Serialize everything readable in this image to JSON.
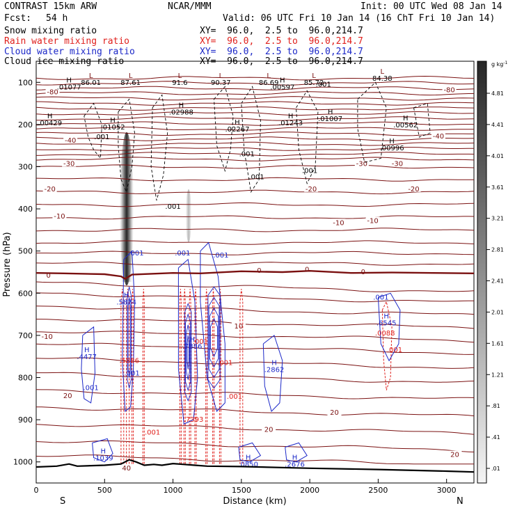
{
  "header": {
    "left_title": "CONTRAST 15km ARW",
    "center_title": "NCAR/MMM",
    "init": "Init: 00 UTC Wed 08 Jan 14",
    "fcst_label": "Fcst:",
    "fcst_value": "54 h",
    "valid": "Valid: 06 UTC Fri 10 Jan 14 (16 ChT Fri 10 Jan 14)"
  },
  "fields": [
    {
      "name": "Snow mixing ratio",
      "xy": "XY=  96.0,  2.5 to  96.0,214.7",
      "color": "#000000"
    },
    {
      "name": "Rain water mixing ratio",
      "xy": "XY=  96.0,  2.5 to  96.0,214.7",
      "color": "#e0201c"
    },
    {
      "name": "Cloud water mixing ratio",
      "xy": "XY=  96.0,  2.5 to  96.0,214.7",
      "color": "#1c28c8"
    },
    {
      "name": "Cloud ice mixing ratio",
      "xy": "XY=  96.0,  2.5 to  96.0,214.7",
      "color": "#000000"
    }
  ],
  "chart_data": {
    "type": "contour cross-section",
    "xlabel": "Distance (km)",
    "ylabel": "Pressure (hPa)",
    "xlim": [
      0,
      3200
    ],
    "ylim": [
      1050,
      50
    ],
    "x_ticks": [
      0,
      500,
      1000,
      1500,
      2000,
      2500,
      3000
    ],
    "y_ticks": [
      100,
      200,
      300,
      400,
      500,
      600,
      700,
      800,
      900,
      1000
    ],
    "x_end_labels": {
      "left": "S",
      "right": "N"
    },
    "colorbar": {
      "unit": "g kg",
      "unit_exp": "-1",
      "ticks": [
        "4.81",
        "4.41",
        "4.01",
        "3.61",
        "3.21",
        "2.81",
        "2.41",
        "2.01",
        "1.61",
        "1.21",
        ".81",
        ".41",
        ".01"
      ],
      "values": [
        4.81,
        4.41,
        4.01,
        3.61,
        3.21,
        2.81,
        2.41,
        2.01,
        1.61,
        1.21,
        0.81,
        0.41,
        0.01
      ]
    },
    "temperature_isotherms": {
      "color": "#7a1010",
      "labels": [
        {
          "text": "-80",
          "x": 120,
          "p": 125
        },
        {
          "text": "-80",
          "x": 3020,
          "p": 120
        },
        {
          "text": "-40",
          "x": 250,
          "p": 240
        },
        {
          "text": "-40",
          "x": 2940,
          "p": 230
        },
        {
          "text": "-30",
          "x": 240,
          "p": 295
        },
        {
          "text": "-30",
          "x": 2380,
          "p": 295
        },
        {
          "text": "-30",
          "x": 2640,
          "p": 295
        },
        {
          "text": "-20",
          "x": 100,
          "p": 355
        },
        {
          "text": "-20",
          "x": 2010,
          "p": 355
        },
        {
          "text": "-20",
          "x": 2760,
          "p": 355
        },
        {
          "text": "-10",
          "x": 170,
          "p": 420
        },
        {
          "text": "-10",
          "x": 2210,
          "p": 435
        },
        {
          "text": "-10",
          "x": 2460,
          "p": 430
        },
        {
          "text": "0",
          "x": 90,
          "p": 560
        },
        {
          "text": "0",
          "x": 1630,
          "p": 548
        },
        {
          "text": "0",
          "x": 1980,
          "p": 546
        },
        {
          "text": "0",
          "x": 2390,
          "p": 552
        },
        {
          "text": "10",
          "x": 1480,
          "p": 680
        },
        {
          "text": "-10",
          "x": 80,
          "p": 705
        },
        {
          "text": "20",
          "x": 230,
          "p": 845
        },
        {
          "text": "20",
          "x": 1700,
          "p": 925
        },
        {
          "text": "20",
          "x": 2180,
          "p": 885
        },
        {
          "text": "20",
          "x": 3060,
          "p": 985
        },
        {
          "text": "40",
          "x": 660,
          "p": 1017
        }
      ]
    },
    "snow_label_values": [
      {
        "mark": "L",
        "value": "86.01",
        "x": 400,
        "p": 90
      },
      {
        "mark": "L",
        "value": "87.61",
        "x": 690,
        "p": 90
      },
      {
        "mark": "L",
        "value": "91.6",
        "x": 1050,
        "p": 90
      },
      {
        "mark": "L",
        "value": "90.37",
        "x": 1350,
        "p": 90
      },
      {
        "mark": "L",
        "value": "86.69",
        "x": 1700,
        "p": 90
      },
      {
        "mark": "L",
        "value": "85.72",
        "x": 2030,
        "p": 90
      },
      {
        "mark": "L",
        "value": "84.38",
        "x": 2530,
        "p": 80
      },
      {
        "mark": "H",
        "value": ".01077",
        "x": 240,
        "p": 100
      },
      {
        "mark": "H",
        "value": ".02988",
        "x": 1060,
        "p": 160
      },
      {
        "mark": "H",
        "value": ".00597",
        "x": 1800,
        "p": 100
      },
      {
        "mark": "H",
        "value": ".00429",
        "x": 100,
        "p": 185
      },
      {
        "mark": "H",
        "value": ".01052",
        "x": 560,
        "p": 195
      },
      {
        "mark": "H",
        "value": ".02267",
        "x": 1470,
        "p": 200
      },
      {
        "mark": "H",
        "value": ".01243",
        "x": 1860,
        "p": 185
      },
      {
        "mark": "H",
        "value": ".01007",
        "x": 2150,
        "p": 175
      },
      {
        "mark": "H",
        "value": ".00562",
        "x": 2700,
        "p": 190
      },
      {
        "mark": "H",
        "value": ".00996",
        "x": 2600,
        "p": 245
      }
    ],
    "cloud_ice_labels": [
      {
        "text": ".001",
        "x": 2100,
        "p": 110
      },
      {
        "text": ".001",
        "x": 480,
        "p": 235
      },
      {
        "text": ".001",
        "x": 1540,
        "p": 275
      },
      {
        "text": ".001",
        "x": 1610,
        "p": 330
      },
      {
        "text": ".001",
        "x": 2000,
        "p": 315
      },
      {
        "text": ".001",
        "x": 1000,
        "p": 400
      }
    ],
    "cloud_water_labels": [
      {
        "mark": "H",
        "value": ".5874",
        "x": 660,
        "p": 610
      },
      {
        "mark": "H",
        "value": ".4477",
        "x": 370,
        "p": 740
      },
      {
        "mark": "H",
        "value": ".7886",
        "x": 1140,
        "p": 715
      },
      {
        "mark": "H",
        "value": ".2862",
        "x": 1740,
        "p": 770
      },
      {
        "mark": "H",
        "value": ".6545",
        "x": 2560,
        "p": 660
      },
      {
        "mark": "H",
        "value": ".1039",
        "x": 490,
        "p": 980
      },
      {
        "mark": "H",
        "value": ".0850",
        "x": 1550,
        "p": 995
      },
      {
        "mark": "H",
        "value": ".2676",
        "x": 1890,
        "p": 995
      }
    ],
    "cloud_water_small": [
      {
        "text": ".001",
        "x": 730,
        "p": 510
      },
      {
        "text": ".001",
        "x": 1070,
        "p": 510
      },
      {
        "text": ".001",
        "x": 1350,
        "p": 515
      },
      {
        "text": ".001",
        "x": 2520,
        "p": 615
      },
      {
        "text": ".001",
        "x": 700,
        "p": 795
      },
      {
        "text": ".001",
        "x": 400,
        "p": 830
      }
    ],
    "rain_labels": [
      {
        "text": ".5886",
        "x": 680,
        "p": 765
      },
      {
        "text": ".7393",
        "x": 1150,
        "p": 905
      },
      {
        "text": ".0088",
        "x": 2550,
        "p": 700
      },
      {
        "text": ".001",
        "x": 1200,
        "p": 720
      },
      {
        "text": ".001",
        "x": 1380,
        "p": 770
      },
      {
        "text": ".001",
        "x": 1450,
        "p": 850
      },
      {
        "text": ".001",
        "x": 850,
        "p": 935
      },
      {
        "text": ".001",
        "x": 2620,
        "p": 740
      }
    ],
    "terrain": [
      [
        0,
        1012
      ],
      [
        150,
        1010
      ],
      [
        240,
        1005
      ],
      [
        300,
        1010
      ],
      [
        500,
        1008
      ],
      [
        620,
        1005
      ],
      [
        680,
        995
      ],
      [
        730,
        1000
      ],
      [
        790,
        1008
      ],
      [
        860,
        1006
      ],
      [
        920,
        1008
      ],
      [
        1000,
        1004
      ],
      [
        1080,
        1006
      ],
      [
        1160,
        1008
      ],
      [
        1250,
        1010
      ],
      [
        1500,
        1011
      ],
      [
        2000,
        1015
      ],
      [
        2500,
        1018
      ],
      [
        3000,
        1022
      ],
      [
        3200,
        1024
      ]
    ],
    "freezing_level": [
      [
        0,
        552
      ],
      [
        200,
        553
      ],
      [
        500,
        555
      ],
      [
        620,
        560
      ],
      [
        650,
        566
      ],
      [
        700,
        556
      ],
      [
        1000,
        552
      ],
      [
        1200,
        553
      ],
      [
        1500,
        548
      ],
      [
        1800,
        550
      ],
      [
        2000,
        547
      ],
      [
        2300,
        552
      ],
      [
        2600,
        551
      ],
      [
        2900,
        552
      ],
      [
        3200,
        553
      ]
    ]
  }
}
